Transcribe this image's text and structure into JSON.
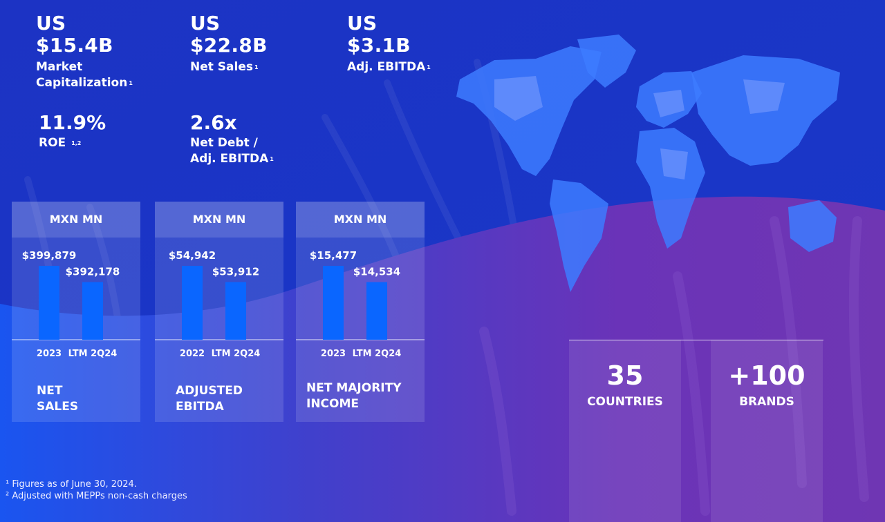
{
  "colors": {
    "background_top": "#1a37c9",
    "background_bottom": "#6a2fb5",
    "bar": "#0a66ff",
    "map": "#3d7bff"
  },
  "kpis": [
    {
      "prefix": "US",
      "value": "$15.4B",
      "label_lines": [
        "Market",
        "Capitalization"
      ],
      "footnote": "1"
    },
    {
      "prefix": "US",
      "value": "$22.8B",
      "label_lines": [
        "Net Sales"
      ],
      "footnote": "1"
    },
    {
      "prefix": "US",
      "value": "$3.1B",
      "label_lines": [
        "Adj. EBITDA"
      ],
      "footnote": "1"
    }
  ],
  "small_kpis": [
    {
      "value": "11.9%",
      "label_lines": [
        "ROE"
      ],
      "footnote": "1,2"
    },
    {
      "value": "2.6x",
      "label_lines": [
        "Net Debt /",
        "Adj. EBITDA"
      ],
      "footnote": "1"
    }
  ],
  "chart_data": [
    {
      "type": "bar",
      "unit_label": "MXN MN",
      "title_lines": [
        "NET",
        "SALES"
      ],
      "categories": [
        "2023",
        "LTM 2Q24"
      ],
      "values": [
        399879,
        392178
      ],
      "value_labels": [
        "$399,879",
        "$392,178"
      ]
    },
    {
      "type": "bar",
      "unit_label": "MXN MN",
      "title_lines": [
        "ADJUSTED",
        "EBITDA"
      ],
      "categories": [
        "2022",
        "LTM 2Q24"
      ],
      "values": [
        54942,
        53912
      ],
      "value_labels": [
        "$54,942",
        "$53,912"
      ]
    },
    {
      "type": "bar",
      "unit_label": "MXN MN",
      "title_lines": [
        "NET MAJORITY",
        "INCOME"
      ],
      "categories": [
        "2023",
        "LTM 2Q24"
      ],
      "values": [
        15477,
        14534
      ],
      "value_labels": [
        "$15,477",
        "$14,534"
      ]
    }
  ],
  "stats": [
    {
      "number": "35",
      "label": "COUNTRIES"
    },
    {
      "number": "+100",
      "label": "BRANDS"
    }
  ],
  "footnotes": [
    "¹ Figures as of June 30, 2024.",
    "² Adjusted with MEPPs non-cash charges"
  ]
}
